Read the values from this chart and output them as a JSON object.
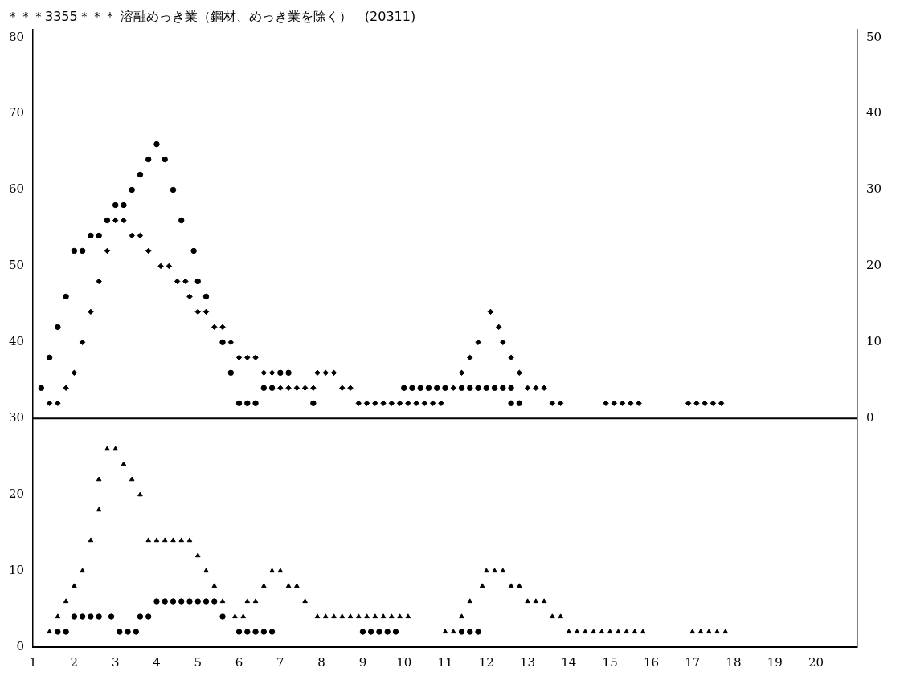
{
  "chart_data": {
    "type": "scatter",
    "title": "＊＊＊3355＊＊＊ 溶融めっき業（鋼材、めっき業を除く）　(20311)",
    "xlim": [
      1,
      21
    ],
    "xticks": [
      1,
      2,
      3,
      4,
      5,
      6,
      7,
      8,
      9,
      10,
      11,
      12,
      13,
      14,
      15,
      16,
      17,
      18,
      19,
      20
    ],
    "ylim": [
      0,
      81
    ],
    "yticks": [
      0,
      10,
      20,
      30,
      40,
      50,
      60,
      70,
      80
    ],
    "y2lim": [
      -30,
      51
    ],
    "y2ticks": [
      0,
      10,
      20,
      30,
      40,
      50
    ],
    "grid": false,
    "legend": false,
    "ref_lines": [
      {
        "axis": "y2",
        "value": 0,
        "color": "#000000"
      }
    ],
    "series": [
      {
        "axis": "y2",
        "marker": "circle",
        "color": "#000000",
        "x": [
          1.2,
          1.4,
          1.6,
          1.8,
          2.0,
          2.2,
          2.4,
          2.6,
          2.8,
          3.0,
          3.2,
          3.4,
          3.6,
          3.8,
          4.0,
          4.2,
          4.4,
          4.6,
          4.9,
          5.0,
          5.2,
          5.6,
          5.8,
          6.0,
          6.2,
          6.4,
          6.6,
          6.8,
          7.0,
          7.2,
          7.8,
          10.0,
          10.2,
          10.4,
          10.6,
          10.8,
          11.0,
          11.4,
          11.6,
          11.8,
          12.0,
          12.2,
          12.4,
          12.6,
          12.6,
          12.8
        ],
        "values": [
          4,
          8,
          12,
          16,
          22,
          22,
          24,
          24,
          26,
          28,
          28,
          30,
          32,
          34,
          36,
          34,
          30,
          26,
          22,
          18,
          16,
          10,
          6,
          2,
          2,
          2,
          4,
          4,
          6,
          6,
          2,
          4,
          4,
          4,
          4,
          4,
          4,
          4,
          4,
          4,
          4,
          4,
          4,
          4,
          2,
          2
        ]
      },
      {
        "axis": "y2",
        "marker": "diamond",
        "color": "#000000",
        "x": [
          1.4,
          1.6,
          1.8,
          2.0,
          2.2,
          2.4,
          2.6,
          2.8,
          3.0,
          3.2,
          3.4,
          3.6,
          3.8,
          4.1,
          4.3,
          4.5,
          4.7,
          4.8,
          5.0,
          5.2,
          5.4,
          5.6,
          5.8,
          6.0,
          6.2,
          6.4,
          6.6,
          6.8,
          7.0,
          7.2,
          7.4,
          7.6,
          7.8,
          7.9,
          8.1,
          8.3,
          8.5,
          8.7,
          8.9,
          9.1,
          9.3,
          9.5,
          9.7,
          9.9,
          10.1,
          10.3,
          10.5,
          10.7,
          10.9,
          11.2,
          11.4,
          11.6,
          11.8,
          12.1,
          12.3,
          12.4,
          12.6,
          12.8,
          13.0,
          13.2,
          13.4,
          13.6,
          13.8,
          14.9,
          15.1,
          15.3,
          15.5,
          15.7,
          16.9,
          17.1,
          17.3,
          17.5,
          17.7
        ],
        "values": [
          2,
          2,
          4,
          6,
          10,
          14,
          18,
          22,
          26,
          26,
          24,
          24,
          22,
          20,
          20,
          18,
          18,
          16,
          14,
          14,
          12,
          12,
          10,
          8,
          8,
          8,
          6,
          6,
          4,
          4,
          4,
          4,
          4,
          6,
          6,
          6,
          4,
          4,
          2,
          2,
          2,
          2,
          2,
          2,
          2,
          2,
          2,
          2,
          2,
          4,
          6,
          8,
          10,
          14,
          12,
          10,
          8,
          6,
          4,
          4,
          4,
          2,
          2,
          2,
          2,
          2,
          2,
          2,
          2,
          2,
          2,
          2,
          2
        ]
      },
      {
        "marker": "triangle",
        "color": "#000000",
        "x": [
          1.4,
          1.6,
          1.8,
          2.0,
          2.2,
          2.4,
          2.6,
          2.6,
          2.8,
          3.0,
          3.2,
          3.4,
          3.6,
          3.8,
          4.0,
          4.2,
          4.4,
          4.6,
          4.8,
          5.0,
          5.2,
          5.4,
          5.6,
          5.9,
          6.1,
          6.2,
          6.4,
          6.6,
          6.8,
          7.0,
          7.2,
          7.4,
          7.6,
          7.9,
          8.1,
          8.3,
          8.5,
          8.7,
          8.9,
          9.1,
          9.3,
          9.5,
          9.7,
          9.9,
          10.1,
          11.0,
          11.2,
          11.4,
          11.6,
          11.9,
          12.0,
          12.2,
          12.4,
          12.6,
          12.8,
          13.0,
          13.2,
          13.4,
          13.6,
          13.8,
          14.0,
          14.2,
          14.4,
          14.6,
          14.8,
          15.0,
          15.2,
          15.4,
          15.6,
          15.8,
          17.0,
          17.2,
          17.4,
          17.6,
          17.8
        ],
        "values": [
          2,
          4,
          6,
          8,
          10,
          14,
          18,
          22,
          26,
          26,
          24,
          22,
          20,
          14,
          14,
          14,
          14,
          14,
          14,
          12,
          10,
          8,
          6,
          4,
          4,
          6,
          6,
          8,
          10,
          10,
          8,
          8,
          6,
          4,
          4,
          4,
          4,
          4,
          4,
          4,
          4,
          4,
          4,
          4,
          4,
          2,
          2,
          4,
          6,
          8,
          10,
          10,
          10,
          8,
          8,
          6,
          6,
          6,
          4,
          4,
          2,
          2,
          2,
          2,
          2,
          2,
          2,
          2,
          2,
          2,
          2,
          2,
          2,
          2,
          2
        ]
      },
      {
        "marker": "circle",
        "color": "#000000",
        "x": [
          1.6,
          1.8,
          2.0,
          2.2,
          2.4,
          2.6,
          2.9,
          3.1,
          3.3,
          3.5,
          3.6,
          3.8,
          4.0,
          4.2,
          4.4,
          4.6,
          4.8,
          5.0,
          5.2,
          5.4,
          5.6,
          6.0,
          6.2,
          6.4,
          6.6,
          6.8,
          9.0,
          9.2,
          9.4,
          9.6,
          9.8,
          11.4,
          11.6,
          11.8
        ],
        "values": [
          2,
          2,
          4,
          4,
          4,
          4,
          4,
          2,
          2,
          2,
          4,
          4,
          6,
          6,
          6,
          6,
          6,
          6,
          6,
          6,
          4,
          2,
          2,
          2,
          2,
          2,
          2,
          2,
          2,
          2,
          2,
          2,
          2,
          2
        ]
      }
    ]
  }
}
